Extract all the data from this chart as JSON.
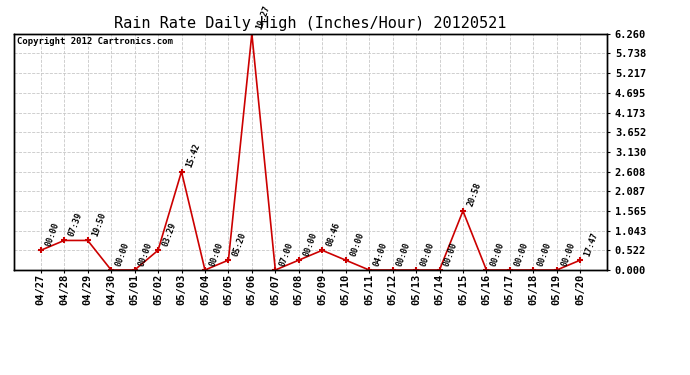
{
  "title": "Rain Rate Daily High (Inches/Hour) 20120521",
  "copyright": "Copyright 2012 Cartronics.com",
  "background_color": "#ffffff",
  "plot_bg_color": "#ffffff",
  "line_color": "#cc0000",
  "marker_color": "#cc0000",
  "grid_color": "#c8c8c8",
  "x_labels": [
    "04/27",
    "04/28",
    "04/29",
    "04/30",
    "05/01",
    "05/02",
    "05/03",
    "05/04",
    "05/05",
    "05/06",
    "05/07",
    "05/08",
    "05/09",
    "05/10",
    "05/11",
    "05/12",
    "05/13",
    "05/14",
    "05/15",
    "05/16",
    "05/17",
    "05/18",
    "05/19",
    "05/20"
  ],
  "y_values": [
    0.522,
    0.783,
    0.783,
    0.0,
    0.0,
    0.522,
    2.608,
    0.0,
    0.261,
    6.26,
    0.0,
    0.261,
    0.522,
    0.261,
    0.0,
    0.0,
    0.0,
    0.0,
    1.565,
    0.0,
    0.0,
    0.0,
    0.0,
    0.261
  ],
  "time_labels": [
    "00:00",
    "07:39",
    "19:50",
    "00:00",
    "00:00",
    "03:29",
    "15:42",
    "00:00",
    "05:20",
    "19:27",
    "07:00",
    "00:00",
    "08:46",
    "00:00",
    "04:00",
    "00:00",
    "00:00",
    "00:00",
    "20:58",
    "00:00",
    "00:00",
    "00:00",
    "00:00",
    "17:47"
  ],
  "yticks": [
    0.0,
    0.522,
    1.043,
    1.565,
    2.087,
    2.608,
    3.13,
    3.652,
    4.173,
    4.695,
    5.217,
    5.738,
    6.26
  ],
  "ymin": 0.0,
  "ymax": 6.26,
  "title_fontsize": 11,
  "tick_fontsize": 7.5,
  "annotation_fontsize": 6,
  "copyright_fontsize": 6.5
}
